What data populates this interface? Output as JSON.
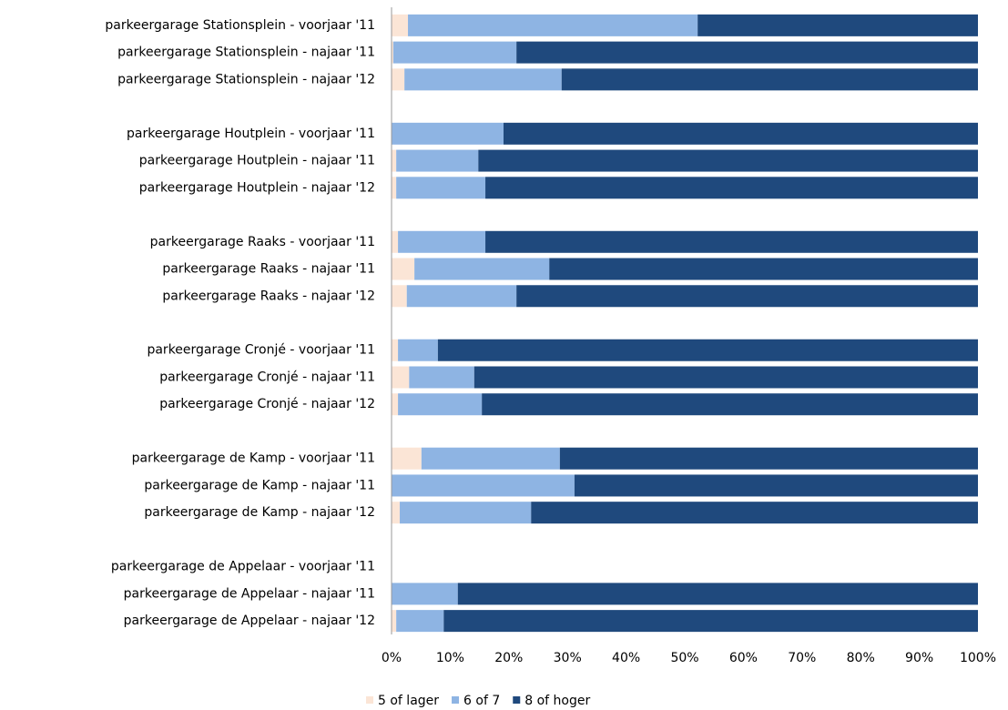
{
  "chart_data": {
    "type": "stacked_barh",
    "categories": [
      "parkeergarage Stationsplein - voorjaar '11",
      "parkeergarage Stationsplein - najaar '11",
      "parkeergarage Stationsplein - najaar '12",
      null,
      "parkeergarage Houtplein - voorjaar '11",
      "parkeergarage Houtplein - najaar '11",
      "parkeergarage Houtplein - najaar '12",
      null,
      "parkeergarage Raaks - voorjaar '11",
      "parkeergarage Raaks - najaar '11",
      "parkeergarage Raaks - najaar '12",
      null,
      "parkeergarage Cronjé - voorjaar '11",
      "parkeergarage Cronjé - najaar '11",
      "parkeergarage Cronjé - najaar '12",
      null,
      "parkeergarage de Kamp - voorjaar '11",
      "parkeergarage de Kamp - najaar '11",
      "parkeergarage de Kamp - najaar '12",
      null,
      "parkeergarage de Appelaar - voorjaar '11",
      "parkeergarage de Appelaar - najaar '11",
      "parkeergarage de Appelaar - najaar '12"
    ],
    "series": [
      {
        "name": "5 of lager",
        "color": "#fbe5d6",
        "values": [
          2.8,
          0.3,
          2.2,
          null,
          0,
          0.8,
          0.8,
          null,
          1.1,
          3.9,
          2.6,
          null,
          1.1,
          3.0,
          1.1,
          null,
          5.1,
          0,
          1.4,
          null,
          null,
          0,
          0.8
        ]
      },
      {
        "name": "6 of 7",
        "color": "#8eb4e3",
        "values": [
          49.4,
          21.0,
          26.8,
          null,
          19.1,
          14.0,
          15.2,
          null,
          14.9,
          23.0,
          18.7,
          null,
          6.8,
          11.1,
          14.3,
          null,
          23.6,
          31.2,
          22.4,
          null,
          null,
          11.3,
          8.1
        ]
      },
      {
        "name": "8 of hoger",
        "color": "#1f497d",
        "values": [
          47.8,
          78.7,
          71.0,
          null,
          80.9,
          85.2,
          84.0,
          null,
          84.0,
          73.1,
          78.7,
          null,
          92.1,
          85.9,
          84.6,
          null,
          71.3,
          68.8,
          76.2,
          null,
          null,
          88.7,
          91.1
        ]
      }
    ],
    "xlim": [
      0,
      100
    ],
    "xticks": [
      {
        "value": 0,
        "label": "0%"
      },
      {
        "value": 10,
        "label": "10%"
      },
      {
        "value": 20,
        "label": "20%"
      },
      {
        "value": 30,
        "label": "30%"
      },
      {
        "value": 40,
        "label": "40%"
      },
      {
        "value": 50,
        "label": "50%"
      },
      {
        "value": 60,
        "label": "60%"
      },
      {
        "value": 70,
        "label": "70%"
      },
      {
        "value": 80,
        "label": "80%"
      },
      {
        "value": 90,
        "label": "90%"
      },
      {
        "value": 100,
        "label": "100%"
      }
    ],
    "legend": "bottom"
  }
}
